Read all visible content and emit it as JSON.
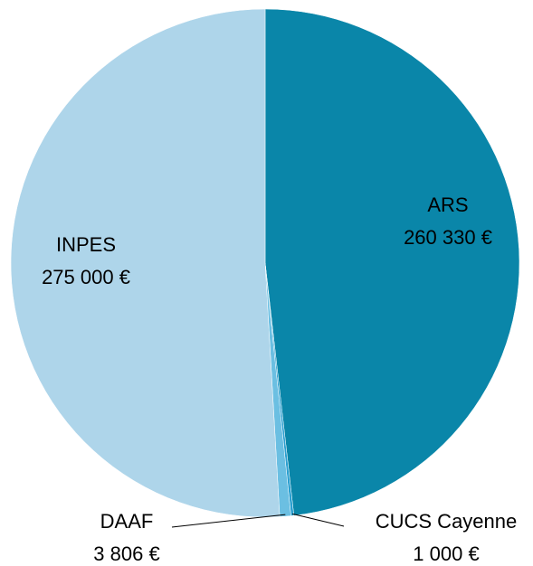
{
  "chart_data": {
    "type": "pie",
    "categories": [
      "ARS",
      "CUCS Cayenne",
      "DAAF",
      "INPES"
    ],
    "values": [
      260330,
      1000,
      3806,
      275000
    ],
    "value_labels": [
      "260 330 €",
      "1 000 €",
      "3 806 €",
      "275 000 €"
    ],
    "colors": [
      "#0a86a9",
      "#2a9fd0",
      "#6bbfe2",
      "#aed5ea"
    ]
  }
}
